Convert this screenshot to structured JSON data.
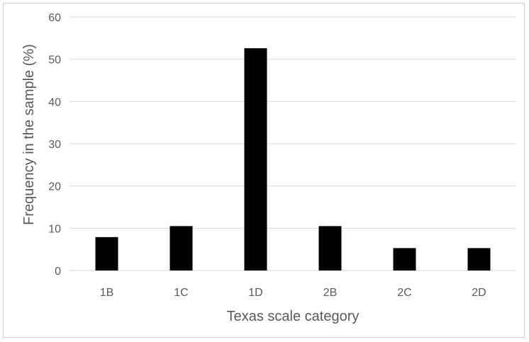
{
  "chart_data": {
    "type": "bar",
    "categories": [
      "1B",
      "1C",
      "1D",
      "2B",
      "2C",
      "2D"
    ],
    "values": [
      7.9,
      10.5,
      52.6,
      10.5,
      5.3,
      5.3
    ],
    "xlabel": "Texas scale category",
    "ylabel": "Frequency in the sample (%)",
    "ylim": [
      0,
      60
    ],
    "yticks": [
      "0",
      "10",
      "20",
      "30",
      "40",
      "50",
      "60"
    ],
    "grid": true,
    "legend": "none",
    "colors": {
      "bar": "#000000",
      "grid": "#d9d9d9",
      "text": "#595959"
    }
  }
}
